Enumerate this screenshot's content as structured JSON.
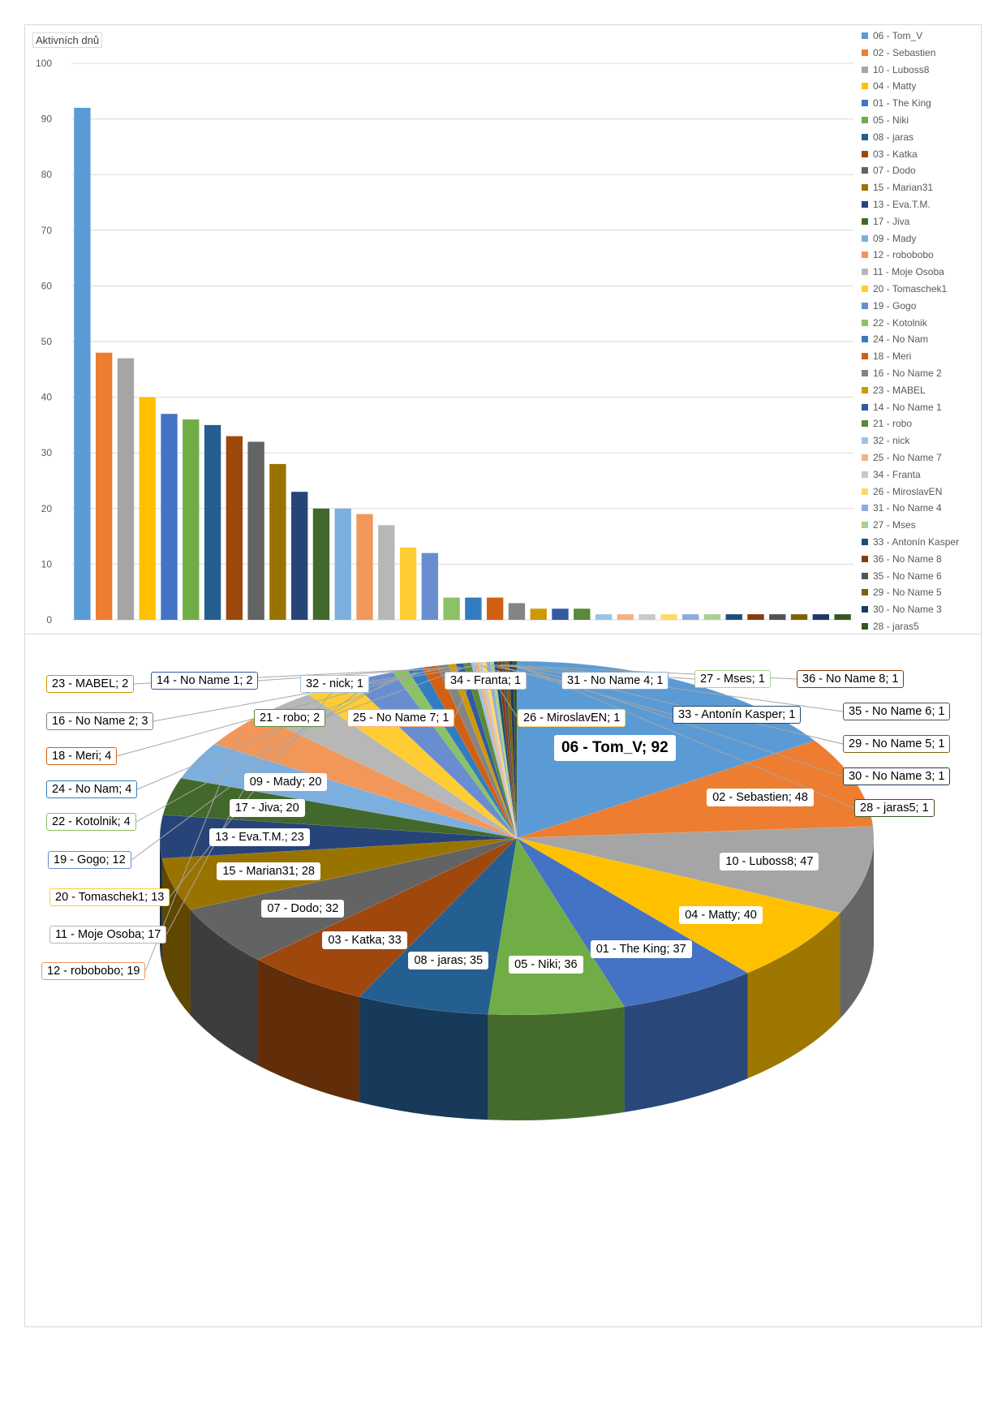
{
  "chart_data": [
    {
      "type": "bar",
      "ylabel": "Aktivních dnů",
      "ylim": [
        0,
        100
      ],
      "yticks": [
        0,
        10,
        20,
        30,
        40,
        50,
        60,
        70,
        80,
        90,
        100
      ],
      "grid": true,
      "legend_position": "right",
      "series": [
        {
          "name": "06 - Tom_V",
          "value": 92,
          "color": "#5B9BD5"
        },
        {
          "name": "02 - Sebastien",
          "value": 48,
          "color": "#ED7D31"
        },
        {
          "name": "10 - Luboss8",
          "value": 47,
          "color": "#A5A5A5"
        },
        {
          "name": "04 - Matty",
          "value": 40,
          "color": "#FFC000"
        },
        {
          "name": "01 - The King",
          "value": 37,
          "color": "#4472C4"
        },
        {
          "name": "05 - Niki",
          "value": 36,
          "color": "#70AD47"
        },
        {
          "name": "08 - jaras",
          "value": 35,
          "color": "#255E91"
        },
        {
          "name": "03 - Katka",
          "value": 33,
          "color": "#9E480E"
        },
        {
          "name": "07 - Dodo",
          "value": 32,
          "color": "#636363"
        },
        {
          "name": "15 - Marian31",
          "value": 28,
          "color": "#997300"
        },
        {
          "name": "13 - Eva.T.M.",
          "value": 23,
          "color": "#264478"
        },
        {
          "name": "17 - Jiva",
          "value": 20,
          "color": "#43682B"
        },
        {
          "name": "09 - Mady",
          "value": 20,
          "color": "#7CAFDD"
        },
        {
          "name": "12 - robobobo",
          "value": 19,
          "color": "#F1975A"
        },
        {
          "name": "11 - Moje Osoba",
          "value": 17,
          "color": "#B7B7B7"
        },
        {
          "name": "20 - Tomaschek1",
          "value": 13,
          "color": "#FFCD33"
        },
        {
          "name": "19 - Gogo",
          "value": 12,
          "color": "#698ED0"
        },
        {
          "name": "22 - Kotolnik",
          "value": 4,
          "color": "#8CC168"
        },
        {
          "name": "24 - No Nam",
          "value": 4,
          "color": "#327DC2"
        },
        {
          "name": "18 - Meri",
          "value": 4,
          "color": "#D26012"
        },
        {
          "name": "16 - No Name 2",
          "value": 3,
          "color": "#848484"
        },
        {
          "name": "23 - MABEL",
          "value": 2,
          "color": "#CC9A00"
        },
        {
          "name": "14 - No Name 1",
          "value": 2,
          "color": "#335AA1"
        },
        {
          "name": "21 - robo",
          "value": 2,
          "color": "#5A8A39"
        },
        {
          "name": "32 - nick",
          "value": 1,
          "color": "#9DC3E6"
        },
        {
          "name": "25 - No Name 7",
          "value": 1,
          "color": "#F4B183"
        },
        {
          "name": "34 - Franta",
          "value": 1,
          "color": "#C9C9C9"
        },
        {
          "name": "26 - MiroslavEN",
          "value": 1,
          "color": "#FFD966"
        },
        {
          "name": "31 - No Name 4",
          "value": 1,
          "color": "#8FAADC"
        },
        {
          "name": "27 - Mses",
          "value": 1,
          "color": "#A9D18E"
        },
        {
          "name": "33 - Antonín Kasper",
          "value": 1,
          "color": "#1F4E79"
        },
        {
          "name": "36 - No Name 8",
          "value": 1,
          "color": "#843C0C"
        },
        {
          "name": "35 - No Name 6",
          "value": 1,
          "color": "#525252"
        },
        {
          "name": "29 - No Name 5",
          "value": 1,
          "color": "#7F6000"
        },
        {
          "name": "30 - No Name 3",
          "value": 1,
          "color": "#203864"
        },
        {
          "name": "28 - jaras5",
          "value": 1,
          "color": "#375623"
        }
      ]
    },
    {
      "type": "pie",
      "style": "3d",
      "label_format": "name; value",
      "uses_series_of_chart": 0
    }
  ]
}
